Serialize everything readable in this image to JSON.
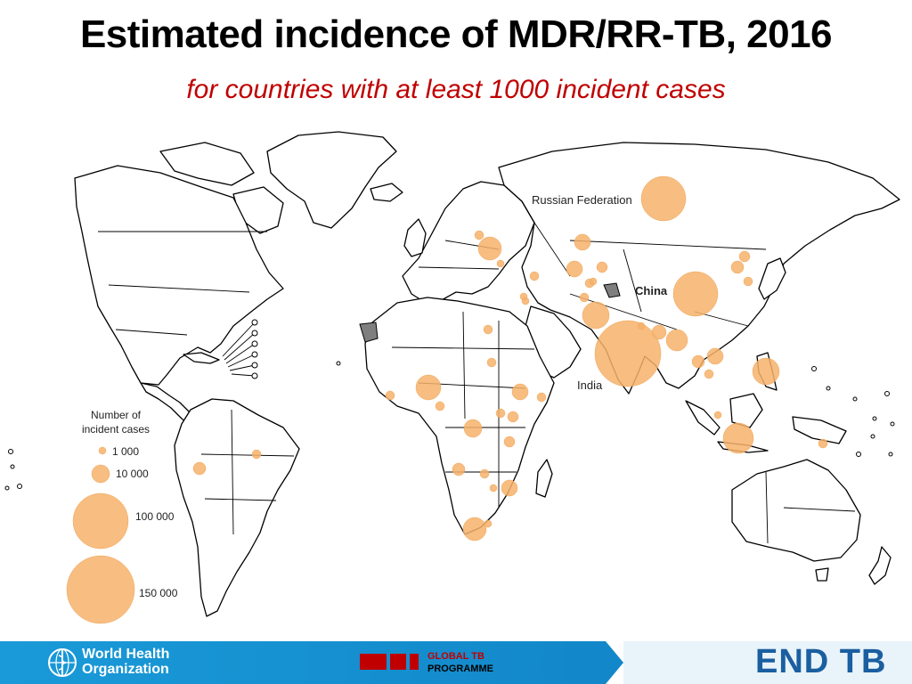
{
  "header": {
    "title": "Estimated incidence of MDR/RR-TB, 2016",
    "subtitle": "for countries with at least 1000 incident cases"
  },
  "map": {
    "labels": {
      "russia": "Russian Federation",
      "china": "China",
      "india": "India"
    },
    "bubble_color": "#f6b26b",
    "bubbles": [
      {
        "country": "Russian Federation",
        "cases": 70000
      },
      {
        "country": "China",
        "cases": 73000
      },
      {
        "country": "India",
        "cases": 147000
      },
      {
        "country": "Indonesia",
        "cases": 32000
      },
      {
        "country": "Pakistan",
        "cases": 26000
      },
      {
        "country": "Philippines",
        "cases": 28000
      },
      {
        "country": "Nigeria",
        "cases": 20000
      },
      {
        "country": "South Africa",
        "cases": 19000
      },
      {
        "country": "Ukraine",
        "cases": 14000
      },
      {
        "country": "Kazakhstan",
        "cases": 8800
      },
      {
        "country": "Bangladesh",
        "cases": 9700
      },
      {
        "country": "Myanmar",
        "cases": 14000
      },
      {
        "country": "DR Congo",
        "cases": 7000
      }
    ]
  },
  "legend": {
    "title_line1": "Number of",
    "title_line2": "incident cases",
    "items": [
      {
        "label": "1 000",
        "value": 1000
      },
      {
        "label": "10 000",
        "value": 10000
      },
      {
        "label": "100 000",
        "value": 100000
      },
      {
        "label": "150 000",
        "value": 150000
      }
    ]
  },
  "footer": {
    "who_line1": "World Health",
    "who_line2": "Organization",
    "gtb_line1": "GLOBAL TB",
    "gtb_line2": "PROGRAMME",
    "end_tb": "END TB",
    "colors": {
      "band": "#0f8fd0",
      "gtb_red": "#c00000",
      "endtb_blue": "#1a5fa0"
    }
  }
}
